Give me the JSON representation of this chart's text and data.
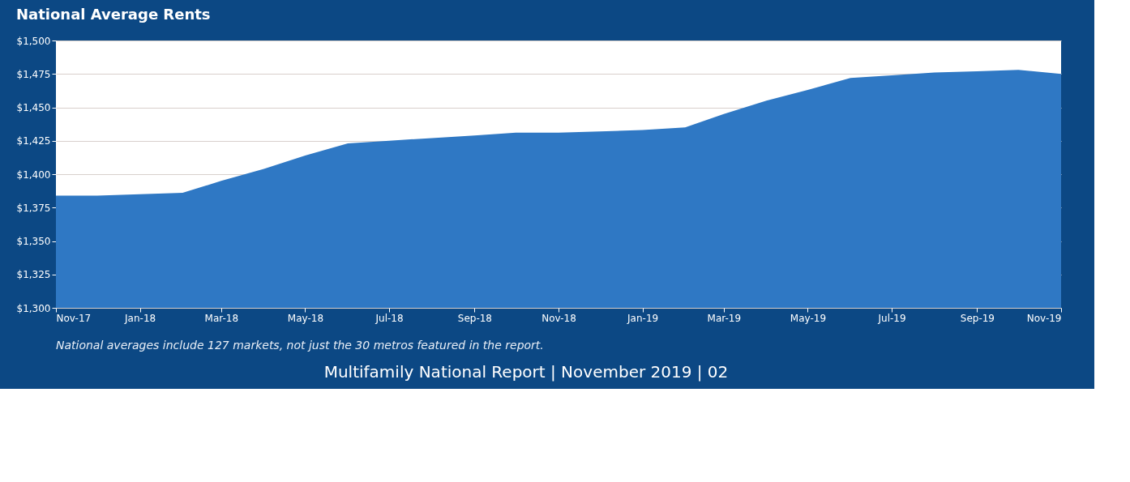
{
  "chart_data": {
    "type": "area",
    "title": "National Average Rents",
    "x": [
      "2017-11",
      "2017-12",
      "2018-01",
      "2018-02",
      "2018-03",
      "2018-04",
      "2018-05",
      "2018-06",
      "2018-07",
      "2018-08",
      "2018-09",
      "2018-10",
      "2018-11",
      "2018-12",
      "2019-01",
      "2019-02",
      "2019-03",
      "2019-04",
      "2019-05",
      "2019-06",
      "2019-07",
      "2019-08",
      "2019-09",
      "2019-10",
      "2019-11"
    ],
    "series": [
      {
        "color": "#2f78c4",
        "values": [
          1384,
          1384,
          1385,
          1386,
          1395,
          1404,
          1414,
          1423,
          1425,
          1427,
          1429,
          1431,
          1431,
          1432,
          1433,
          1435,
          1445,
          1455,
          1463,
          1472,
          1474,
          1476,
          1477,
          1478,
          1475
        ]
      }
    ],
    "xlim": [
      "2017-11",
      "2019-11"
    ],
    "xticks": [
      {
        "value": "2017-11",
        "label": "Nov-17"
      },
      {
        "value": "2018-01",
        "label": "Jan-18"
      },
      {
        "value": "2018-03",
        "label": "Mar-18"
      },
      {
        "value": "2018-05",
        "label": "May-18"
      },
      {
        "value": "2018-07",
        "label": "Jul-18"
      },
      {
        "value": "2018-09",
        "label": "Sep-18"
      },
      {
        "value": "2018-11",
        "label": "Nov-18"
      },
      {
        "value": "2019-01",
        "label": "Jan-19"
      },
      {
        "value": "2019-03",
        "label": "Mar-19"
      },
      {
        "value": "2019-05",
        "label": "May-19"
      },
      {
        "value": "2019-07",
        "label": "Jul-19"
      },
      {
        "value": "2019-09",
        "label": "Sep-19"
      },
      {
        "value": "2019-11",
        "label": "Nov-19"
      }
    ],
    "ylim": [
      1300,
      1500
    ],
    "yticks": [
      {
        "value": 1300,
        "label": "$1,300"
      },
      {
        "value": 1325,
        "label": "$1,325"
      },
      {
        "value": 1350,
        "label": "$1,350"
      },
      {
        "value": 1375,
        "label": "$1,375"
      },
      {
        "value": 1400,
        "label": "$1,400"
      },
      {
        "value": 1425,
        "label": "$1,425"
      },
      {
        "value": 1450,
        "label": "$1,450"
      },
      {
        "value": 1475,
        "label": "$1,475"
      },
      {
        "value": 1500,
        "label": "$1,500"
      }
    ],
    "grid": "y",
    "annotations": [
      "National averages include 127 markets, not just the 30 metros featured in the report.",
      "Multifamily National Report  |  November 2019  |  02"
    ]
  }
}
